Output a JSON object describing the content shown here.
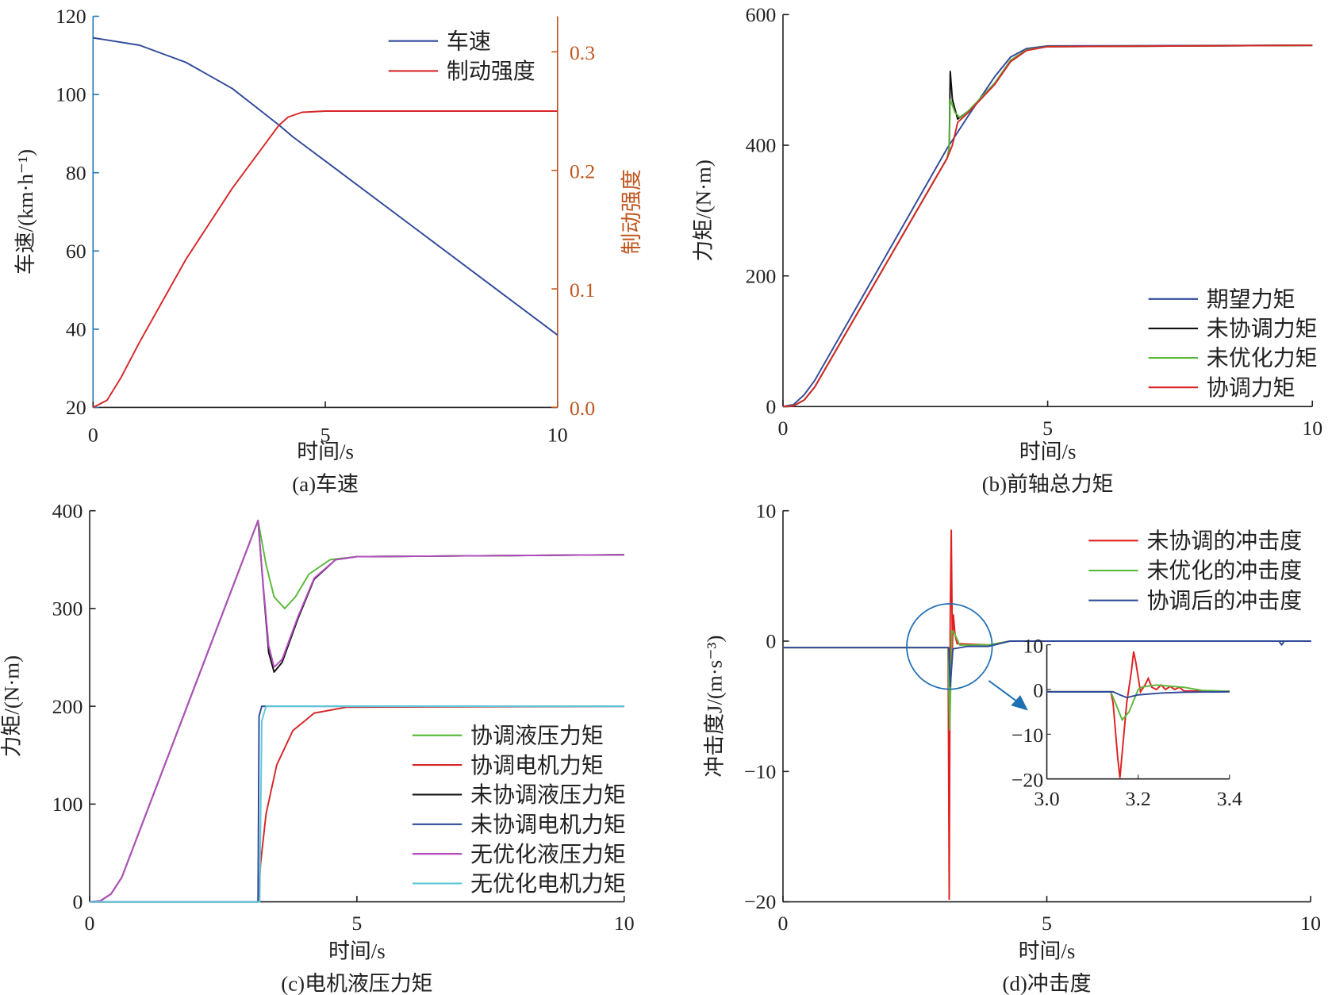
{
  "chart_data": [
    {
      "id": "a",
      "type": "line",
      "caption": "(a)车速",
      "xlabel": "时间/s",
      "ylabel": "车速/(km·h⁻¹)",
      "y2label": "制动强度",
      "xlim": [
        0,
        10
      ],
      "ylim": [
        20,
        120
      ],
      "y2lim": [
        0,
        0.33
      ],
      "xticks": [
        "0",
        "5",
        "10"
      ],
      "yticks": [
        "20",
        "40",
        "60",
        "80",
        "100",
        "120"
      ],
      "y2ticks": [
        "0.0",
        "0.1",
        "0.2",
        "0.3"
      ],
      "legend": "top-right",
      "axis2_color": "#c0561e",
      "series": [
        {
          "name": "车速",
          "color": "#2f4a9a",
          "axis": "left",
          "points": [
            [
              0,
              114.5
            ],
            [
              1,
              112.6
            ],
            [
              2,
              108.2
            ],
            [
              3,
              101.5
            ],
            [
              4,
              92.2
            ],
            [
              4.3,
              89.2
            ],
            [
              5,
              83
            ],
            [
              10,
              38.5
            ]
          ]
        },
        {
          "name": "制动强度",
          "color": "#d62728",
          "axis": "right",
          "points": [
            [
              0,
              0
            ],
            [
              0.3,
              0.006
            ],
            [
              0.6,
              0.025
            ],
            [
              1,
              0.055
            ],
            [
              2,
              0.125
            ],
            [
              3,
              0.185
            ],
            [
              4,
              0.238
            ],
            [
              4.2,
              0.245
            ],
            [
              4.5,
              0.249
            ],
            [
              5,
              0.25
            ],
            [
              10,
              0.25
            ]
          ]
        }
      ]
    },
    {
      "id": "b",
      "type": "line",
      "caption": "(b)前轴总力矩",
      "xlabel": "时间/s",
      "ylabel": "力矩/(N·m)",
      "xlim": [
        0,
        10
      ],
      "ylim": [
        0,
        600
      ],
      "xticks": [
        "0",
        "5",
        "10"
      ],
      "yticks": [
        "0",
        "200",
        "400",
        "600"
      ],
      "legend": "bottom-right",
      "series": [
        {
          "name": "期望力矩",
          "color": "#2f4a9a",
          "points": [
            [
              0,
              0
            ],
            [
              0.2,
              3
            ],
            [
              0.4,
              18
            ],
            [
              0.6,
              40
            ],
            [
              3.1,
              395
            ],
            [
              3.5,
              445
            ],
            [
              4,
              505
            ],
            [
              4.3,
              535
            ],
            [
              4.6,
              548
            ],
            [
              5,
              552
            ],
            [
              10,
              553
            ]
          ]
        },
        {
          "name": "未协调力矩",
          "color": "#111111",
          "points": [
            [
              0,
              0
            ],
            [
              0.2,
              1
            ],
            [
              0.4,
              10
            ],
            [
              0.6,
              30
            ],
            [
              3.1,
              380
            ],
            [
              3.14,
              395
            ],
            [
              3.16,
              513
            ],
            [
              3.2,
              470
            ],
            [
              3.3,
              440
            ],
            [
              3.5,
              452
            ],
            [
              4,
              495
            ],
            [
              4.3,
              530
            ],
            [
              4.6,
              546
            ],
            [
              5,
              551
            ],
            [
              10,
              553
            ]
          ]
        },
        {
          "name": "未优化力矩",
          "color": "#5cb83c",
          "points": [
            [
              0,
              0
            ],
            [
              0.2,
              1
            ],
            [
              0.4,
              10
            ],
            [
              0.6,
              30
            ],
            [
              3.1,
              380
            ],
            [
              3.14,
              395
            ],
            [
              3.16,
              470
            ],
            [
              3.25,
              450
            ],
            [
              3.35,
              442
            ],
            [
              3.5,
              452
            ],
            [
              4,
              495
            ],
            [
              4.3,
              530
            ],
            [
              4.6,
              546
            ],
            [
              5,
              551
            ],
            [
              10,
              553
            ]
          ]
        },
        {
          "name": "协调力矩",
          "color": "#d62728",
          "points": [
            [
              0,
              0
            ],
            [
              0.2,
              1
            ],
            [
              0.4,
              10
            ],
            [
              0.6,
              30
            ],
            [
              3.1,
              380
            ],
            [
              3.2,
              400
            ],
            [
              3.3,
              435
            ],
            [
              3.5,
              450
            ],
            [
              4,
              493
            ],
            [
              4.3,
              528
            ],
            [
              4.6,
              545
            ],
            [
              5,
              551
            ],
            [
              10,
              553
            ]
          ]
        }
      ]
    },
    {
      "id": "c",
      "type": "line",
      "caption": "(c)电机液压力矩",
      "xlabel": "时间/s",
      "ylabel": "力矩/(N·m)",
      "xlim": [
        0,
        10
      ],
      "ylim": [
        0,
        400
      ],
      "xticks": [
        "0",
        "5",
        "10"
      ],
      "yticks": [
        "0",
        "100",
        "200",
        "300",
        "400"
      ],
      "legend": "bottom-right",
      "series": [
        {
          "name": "协调液压力矩",
          "color": "#5cb83c",
          "points": [
            [
              0,
              0
            ],
            [
              0.2,
              1
            ],
            [
              0.4,
              8
            ],
            [
              0.6,
              25
            ],
            [
              3.15,
              390
            ],
            [
              3.3,
              345
            ],
            [
              3.45,
              312
            ],
            [
              3.65,
              300
            ],
            [
              3.85,
              312
            ],
            [
              4.1,
              335
            ],
            [
              4.5,
              350
            ],
            [
              5,
              353
            ],
            [
              10,
              355
            ]
          ]
        },
        {
          "name": "协调电机力矩",
          "color": "#d62728",
          "points": [
            [
              0,
              0
            ],
            [
              3.15,
              0
            ],
            [
              3.2,
              40
            ],
            [
              3.3,
              90
            ],
            [
              3.5,
              140
            ],
            [
              3.8,
              175
            ],
            [
              4.2,
              193
            ],
            [
              4.8,
              199
            ],
            [
              10,
              200
            ]
          ]
        },
        {
          "name": "未协调液压力矩",
          "color": "#111111",
          "points": [
            [
              0,
              0
            ],
            [
              0.2,
              1
            ],
            [
              0.4,
              8
            ],
            [
              0.6,
              25
            ],
            [
              3.15,
              390
            ],
            [
              3.25,
              320
            ],
            [
              3.35,
              255
            ],
            [
              3.45,
              235
            ],
            [
              3.6,
              245
            ],
            [
              3.9,
              290
            ],
            [
              4.2,
              330
            ],
            [
              4.6,
              350
            ],
            [
              5,
              353
            ],
            [
              10,
              355
            ]
          ]
        },
        {
          "name": "未协调电机力矩",
          "color": "#2f4a9a",
          "points": [
            [
              0,
              0
            ],
            [
              3.15,
              0
            ],
            [
              3.17,
              190
            ],
            [
              3.22,
              200
            ],
            [
              10,
              200
            ]
          ]
        },
        {
          "name": "无优化液压力矩",
          "color": "#b44fc0",
          "points": [
            [
              0,
              0
            ],
            [
              0.2,
              1
            ],
            [
              0.4,
              8
            ],
            [
              0.6,
              25
            ],
            [
              3.15,
              390
            ],
            [
              3.25,
              322
            ],
            [
              3.35,
              262
            ],
            [
              3.45,
              240
            ],
            [
              3.6,
              248
            ],
            [
              3.9,
              292
            ],
            [
              4.2,
              331
            ],
            [
              4.6,
              350
            ],
            [
              5,
              353
            ],
            [
              10,
              355
            ]
          ]
        },
        {
          "name": "无优化电机力矩",
          "color": "#5bc8d8",
          "points": [
            [
              0,
              0
            ],
            [
              3.18,
              0
            ],
            [
              3.22,
              185
            ],
            [
              3.3,
              200
            ],
            [
              10,
              200
            ]
          ]
        }
      ]
    },
    {
      "id": "d",
      "type": "line",
      "caption": "(d)冲击度",
      "xlabel": "时间/s",
      "ylabel": "冲击度J/(m·s⁻³)",
      "xlim": [
        0,
        10
      ],
      "ylim": [
        -20,
        10
      ],
      "xticks": [
        "0",
        "5",
        "10"
      ],
      "yticks": [
        "−20",
        "−10",
        "0",
        "10"
      ],
      "legend": "top-right",
      "series": [
        {
          "name": "未协调的冲击度",
          "color": "#e02020",
          "points": [
            [
              0,
              -0.5
            ],
            [
              3.13,
              -0.5
            ],
            [
              3.15,
              -19.8
            ],
            [
              3.17,
              2
            ],
            [
              3.19,
              8.5
            ],
            [
              3.21,
              -0.5
            ],
            [
              3.23,
              2
            ],
            [
              3.26,
              0.5
            ],
            [
              3.3,
              -0.2
            ],
            [
              3.9,
              -0.3
            ],
            [
              4.3,
              0
            ],
            [
              10,
              0
            ]
          ]
        },
        {
          "name": "未优化的冲击度",
          "color": "#5cb83c",
          "points": [
            [
              0,
              -0.5
            ],
            [
              3.13,
              -0.5
            ],
            [
              3.16,
              -6.8
            ],
            [
              3.2,
              0.8
            ],
            [
              3.25,
              0.6
            ],
            [
              3.35,
              -0.3
            ],
            [
              3.9,
              -0.3
            ],
            [
              4.3,
              0
            ],
            [
              10,
              0
            ]
          ]
        },
        {
          "name": "协调后的冲击度",
          "color": "#2f4a9a",
          "points": [
            [
              0,
              -0.5
            ],
            [
              3.14,
              -0.5
            ],
            [
              3.17,
              -3.5
            ],
            [
              3.22,
              -0.6
            ],
            [
              3.5,
              -0.4
            ],
            [
              3.9,
              -0.4
            ],
            [
              4.3,
              0
            ],
            [
              10,
              0
            ],
            [
              9.4,
              0
            ],
            [
              9.45,
              -0.3
            ],
            [
              9.5,
              0
            ]
          ]
        }
      ],
      "inset": {
        "xlim": [
          3.0,
          3.4
        ],
        "ylim": [
          -20,
          10
        ],
        "xticks": [
          "3.0",
          "3.2",
          "3.4"
        ],
        "yticks": [
          "−20",
          "−10",
          "0",
          "10"
        ],
        "series": [
          {
            "color": "#e02020",
            "points": [
              [
                3.0,
                -0.5
              ],
              [
                3.14,
                -0.5
              ],
              [
                3.145,
                -3
              ],
              [
                3.155,
                -15
              ],
              [
                3.16,
                -19.8
              ],
              [
                3.167,
                -12
              ],
              [
                3.175,
                -3
              ],
              [
                3.185,
                4
              ],
              [
                3.19,
                8.5
              ],
              [
                3.195,
                6
              ],
              [
                3.205,
                -0.5
              ],
              [
                3.215,
                1
              ],
              [
                3.222,
                2.5
              ],
              [
                3.23,
                0.5
              ],
              [
                3.24,
                0
              ],
              [
                3.25,
                1
              ],
              [
                3.26,
                0
              ],
              [
                3.27,
                0.7
              ],
              [
                3.28,
                0
              ],
              [
                3.29,
                0.5
              ],
              [
                3.3,
                -0.3
              ],
              [
                3.4,
                -0.4
              ]
            ]
          },
          {
            "color": "#5cb83c",
            "points": [
              [
                3.0,
                -0.5
              ],
              [
                3.14,
                -0.5
              ],
              [
                3.15,
                -3
              ],
              [
                3.165,
                -6.8
              ],
              [
                3.18,
                -5
              ],
              [
                3.2,
                0
              ],
              [
                3.21,
                0.6
              ],
              [
                3.24,
                1
              ],
              [
                3.3,
                0.5
              ],
              [
                3.34,
                -0.2
              ],
              [
                3.4,
                -0.4
              ]
            ]
          },
          {
            "color": "#2f4a9a",
            "points": [
              [
                3.0,
                -0.5
              ],
              [
                3.145,
                -0.5
              ],
              [
                3.16,
                -1.2
              ],
              [
                3.175,
                -1.8
              ],
              [
                3.2,
                -1.2
              ],
              [
                3.25,
                -0.8
              ],
              [
                3.3,
                -0.6
              ],
              [
                3.4,
                -0.5
              ]
            ]
          }
        ]
      }
    }
  ]
}
